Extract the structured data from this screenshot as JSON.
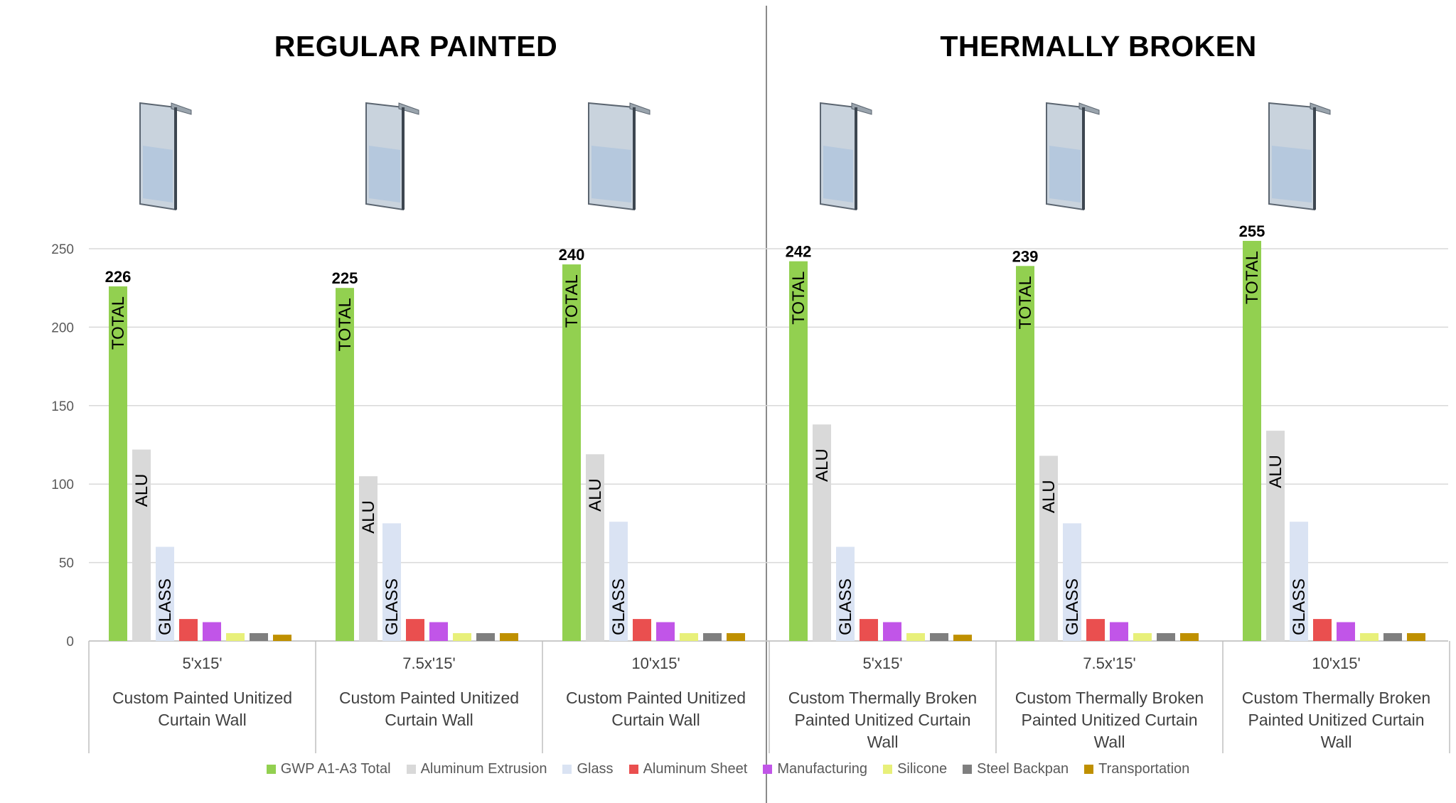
{
  "titles": {
    "left": "REGULAR PAINTED",
    "right": "THERMALLY BROKEN"
  },
  "legend": [
    {
      "label": "GWP A1-A3 Total",
      "color": "#92d050"
    },
    {
      "label": "Aluminum Extrusion",
      "color": "#d9d9d9"
    },
    {
      "label": "Glass",
      "color": "#dae3f3"
    },
    {
      "label": "Aluminum Sheet",
      "color": "#ea4f4f"
    },
    {
      "label": "Manufacturing",
      "color": "#c155e8"
    },
    {
      "label": "Silicone",
      "color": "#e8f07a"
    },
    {
      "label": "Steel Backpan",
      "color": "#7f7f7f"
    },
    {
      "label": "Transportation",
      "color": "#bf9000"
    }
  ],
  "chart_data": {
    "type": "bar",
    "ylim": [
      0,
      250
    ],
    "yticks": [
      0,
      50,
      100,
      150,
      200,
      250
    ],
    "grid": true,
    "legend_position": "bottom",
    "bar_inner_labels": [
      "TOTAL",
      "ALU",
      "GLASS"
    ],
    "groups": [
      {
        "size": "5'x15'",
        "name": "Custom Painted Unitized Curtain Wall",
        "total_label": "226"
      },
      {
        "size": "7.5x'15'",
        "name": "Custom Painted Unitized Curtain Wall",
        "total_label": "225"
      },
      {
        "size": "10'x15'",
        "name": "Custom Painted Unitized Curtain Wall",
        "total_label": "240"
      },
      {
        "size": "5'x15'",
        "name": "Custom Thermally Broken Painted Unitized Curtain Wall",
        "total_label": "242"
      },
      {
        "size": "7.5x'15'",
        "name": "Custom Thermally Broken Painted Unitized Curtain Wall",
        "total_label": "239"
      },
      {
        "size": "10'x15'",
        "name": "Custom Thermally Broken Painted Unitized Curtain Wall",
        "total_label": "255"
      }
    ],
    "series": [
      {
        "name": "GWP A1-A3 Total",
        "values": [
          226,
          225,
          240,
          242,
          239,
          255
        ]
      },
      {
        "name": "Aluminum Extrusion",
        "values": [
          122,
          105,
          119,
          138,
          118,
          134
        ]
      },
      {
        "name": "Glass",
        "values": [
          60,
          75,
          76,
          60,
          75,
          76
        ]
      },
      {
        "name": "Aluminum Sheet",
        "values": [
          14,
          14,
          14,
          14,
          14,
          14
        ]
      },
      {
        "name": "Manufacturing",
        "values": [
          12,
          12,
          12,
          12,
          12,
          12
        ]
      },
      {
        "name": "Silicone",
        "values": [
          5,
          5,
          5,
          5,
          5,
          5
        ]
      },
      {
        "name": "Steel Backpan",
        "values": [
          5,
          5,
          5,
          5,
          5,
          5
        ]
      },
      {
        "name": "Transportation",
        "values": [
          4,
          5,
          5,
          4,
          5,
          5
        ]
      }
    ]
  }
}
